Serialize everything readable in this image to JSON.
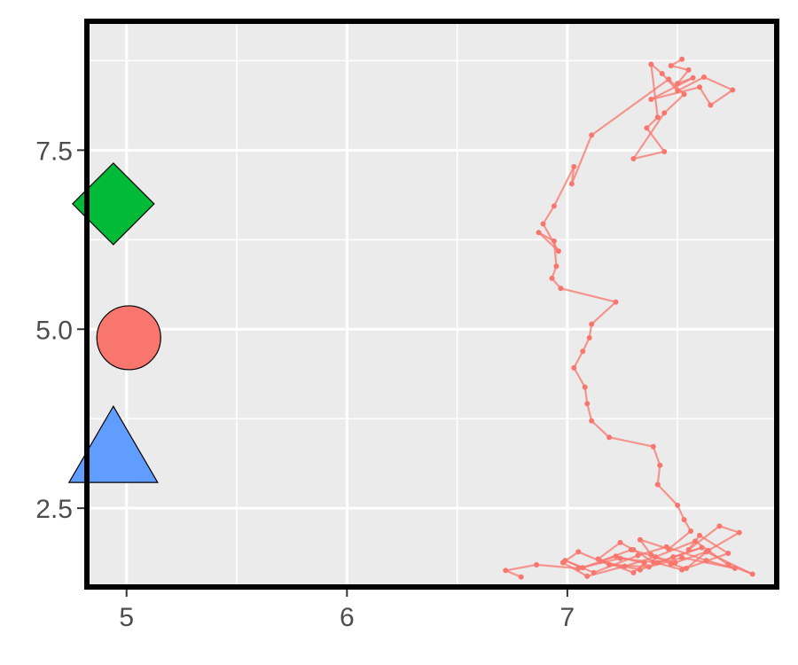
{
  "chart_data": {
    "type": "scatter",
    "title": "",
    "xlabel": "",
    "ylabel": "",
    "xlim": [
      4.82,
      7.95
    ],
    "ylim": [
      1.4,
      9.3
    ],
    "x_ticks": [
      5,
      6,
      7
    ],
    "x_tick_labels": [
      "5",
      "6",
      "7"
    ],
    "y_ticks": [
      2.5,
      5.0,
      7.5
    ],
    "y_tick_labels": [
      "2.5",
      "5.0",
      "7.5"
    ],
    "grid": true,
    "legend": "none",
    "panel_background": "#ebebeb",
    "path_color": "#f8766d",
    "markers": [
      {
        "shape": "diamond",
        "x": 4.94,
        "y": 6.75,
        "color": "#00ba38"
      },
      {
        "shape": "circle",
        "x": 5.01,
        "y": 4.88,
        "color": "#f8766d"
      },
      {
        "shape": "triangle",
        "x": 4.94,
        "y": 3.2,
        "color": "#619cff"
      }
    ],
    "series": [
      {
        "x": [
          7.52,
          7.47,
          7.55,
          7.5,
          7.57,
          7.38,
          7.6,
          7.65,
          7.75,
          7.62,
          7.5,
          7.43,
          7.38,
          7.41,
          7.36,
          7.44,
          7.3,
          7.44,
          7.53,
          7.46,
          7.11,
          7.02,
          7.03,
          6.94,
          6.89,
          6.96,
          6.87,
          6.94,
          6.95,
          6.93,
          6.97,
          7.22,
          7.11,
          7.1,
          7.07,
          7.03,
          7.08,
          7.09,
          7.11,
          7.19,
          7.39,
          7.42,
          7.41,
          7.5,
          7.53,
          7.56,
          7.46,
          7.33,
          7.38,
          7.47,
          7.54,
          7.64,
          7.78,
          7.69,
          7.55,
          7.6,
          7.73,
          7.52,
          7.39,
          7.3,
          7.24,
          7.14,
          7.3,
          7.35,
          7.22,
          7.07,
          6.99,
          7.12,
          7.32,
          7.45,
          7.63,
          7.76,
          7.52,
          7.37,
          7.19,
          7.05,
          6.98,
          7.09,
          7.26,
          7.4,
          7.58,
          7.73,
          7.84,
          7.63,
          7.49,
          7.29,
          7.15,
          7.33,
          7.48,
          7.61,
          7.41,
          7.24,
          7.05,
          6.86,
          6.72,
          6.79
        ],
        "y": [
          8.77,
          8.68,
          8.62,
          8.43,
          8.51,
          8.21,
          8.38,
          8.13,
          8.34,
          8.52,
          8.33,
          8.57,
          8.7,
          7.96,
          7.81,
          7.48,
          7.38,
          8.02,
          8.28,
          8.49,
          7.71,
          7.03,
          7.27,
          6.72,
          6.47,
          6.09,
          6.35,
          6.23,
          5.88,
          5.71,
          5.57,
          5.38,
          5.07,
          4.88,
          4.69,
          4.46,
          4.19,
          3.96,
          3.72,
          3.49,
          3.36,
          3.1,
          2.83,
          2.54,
          2.34,
          2.18,
          1.93,
          2.06,
          1.85,
          1.72,
          1.66,
          1.91,
          2.16,
          2.25,
          1.92,
          2.12,
          1.87,
          1.64,
          1.75,
          1.92,
          2.02,
          1.79,
          1.6,
          1.73,
          1.83,
          1.67,
          1.77,
          1.6,
          1.84,
          1.96,
          1.77,
          1.66,
          1.81,
          1.68,
          1.71,
          1.89,
          1.74,
          1.55,
          1.69,
          1.82,
          2.04,
          1.71,
          1.58,
          1.89,
          1.74,
          1.92,
          1.76,
          1.64,
          1.82,
          1.95,
          1.74,
          1.8,
          1.66,
          1.71,
          1.63,
          1.54
        ]
      }
    ]
  }
}
